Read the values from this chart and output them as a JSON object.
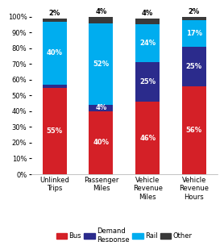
{
  "categories": [
    "Unlinked\nTrips",
    "Passenger\nMiles",
    "Vehicle\nRevenue\nMiles",
    "Vehicle\nRevenue\nHours"
  ],
  "bus": [
    55,
    40,
    46,
    56
  ],
  "demand_response": [
    2,
    4,
    25,
    25
  ],
  "rail": [
    40,
    52,
    24,
    17
  ],
  "other": [
    2,
    4,
    4,
    2
  ],
  "bus_color": "#d42027",
  "demand_color": "#2b2b8c",
  "rail_color": "#00adef",
  "other_color": "#3a3a3a",
  "label_fontsize": 6.0,
  "tick_fontsize": 6.0,
  "legend_fontsize": 6.0,
  "background_color": "#ffffff"
}
